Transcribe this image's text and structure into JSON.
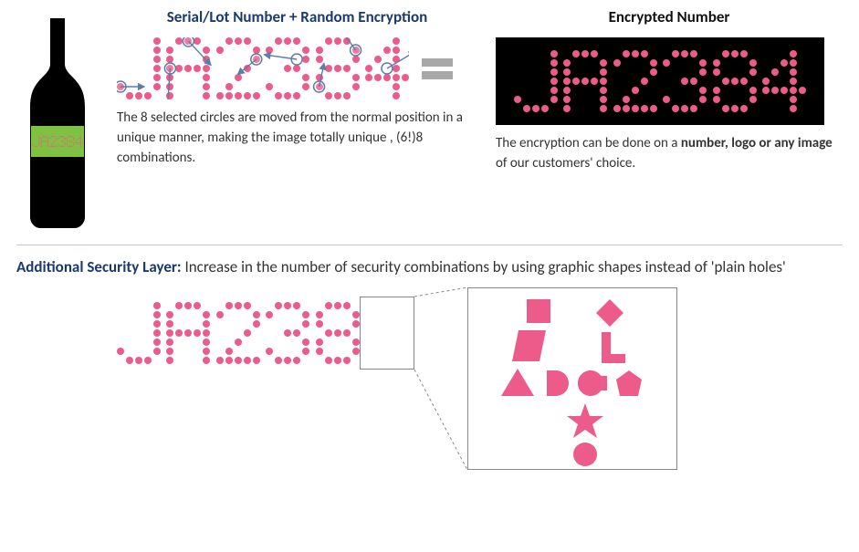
{
  "colors": {
    "pink": "#ed5b8a",
    "navy": "#1a3a6e",
    "grey": "#a8a8a8",
    "label_green": "#7fc241",
    "black": "#000000"
  },
  "encrypted_text": "JA2384",
  "dot_grid": {
    "cols": 5,
    "rows": 7
  },
  "section1": {
    "mid_heading": "Serial/Lot Number + Random Encryption",
    "right_heading": "Encrypted Number",
    "mid_desc": "The 8 selected circles are moved from the normal position in a unique manner, making the image totally unique , (6!)8 combinations.",
    "right_desc_pre": "The encryption can be done on a ",
    "right_desc_bold": "number, logo or any image",
    "right_desc_post": " of our customers' choice."
  },
  "section2": {
    "lead": "Additional Security Layer:",
    "rest": " Increase in the number of security combinations by using graphic shapes instead of 'plain holes'",
    "shapes": [
      "square",
      "parallelogram",
      "diamond",
      "L",
      "triangle",
      "D",
      "C",
      "pentagon",
      "star",
      "circle"
    ]
  },
  "font5x7": {
    "J": [
      "00001",
      "00001",
      "00001",
      "00001",
      "00001",
      "10001",
      "01110"
    ],
    "A": [
      "01110",
      "10001",
      "10001",
      "11111",
      "10001",
      "10001",
      "10001"
    ],
    "2": [
      "01110",
      "10001",
      "00001",
      "00010",
      "00100",
      "01000",
      "11111"
    ],
    "3": [
      "01110",
      "10001",
      "00001",
      "00110",
      "00001",
      "10001",
      "01110"
    ],
    "8": [
      "01110",
      "10001",
      "10001",
      "01110",
      "10001",
      "10001",
      "01110"
    ],
    "4": [
      "00010",
      "00110",
      "01010",
      "10010",
      "11111",
      "00010",
      "00010"
    ]
  },
  "dot_sizes": {
    "large": 8,
    "med": 7,
    "small": 6
  }
}
